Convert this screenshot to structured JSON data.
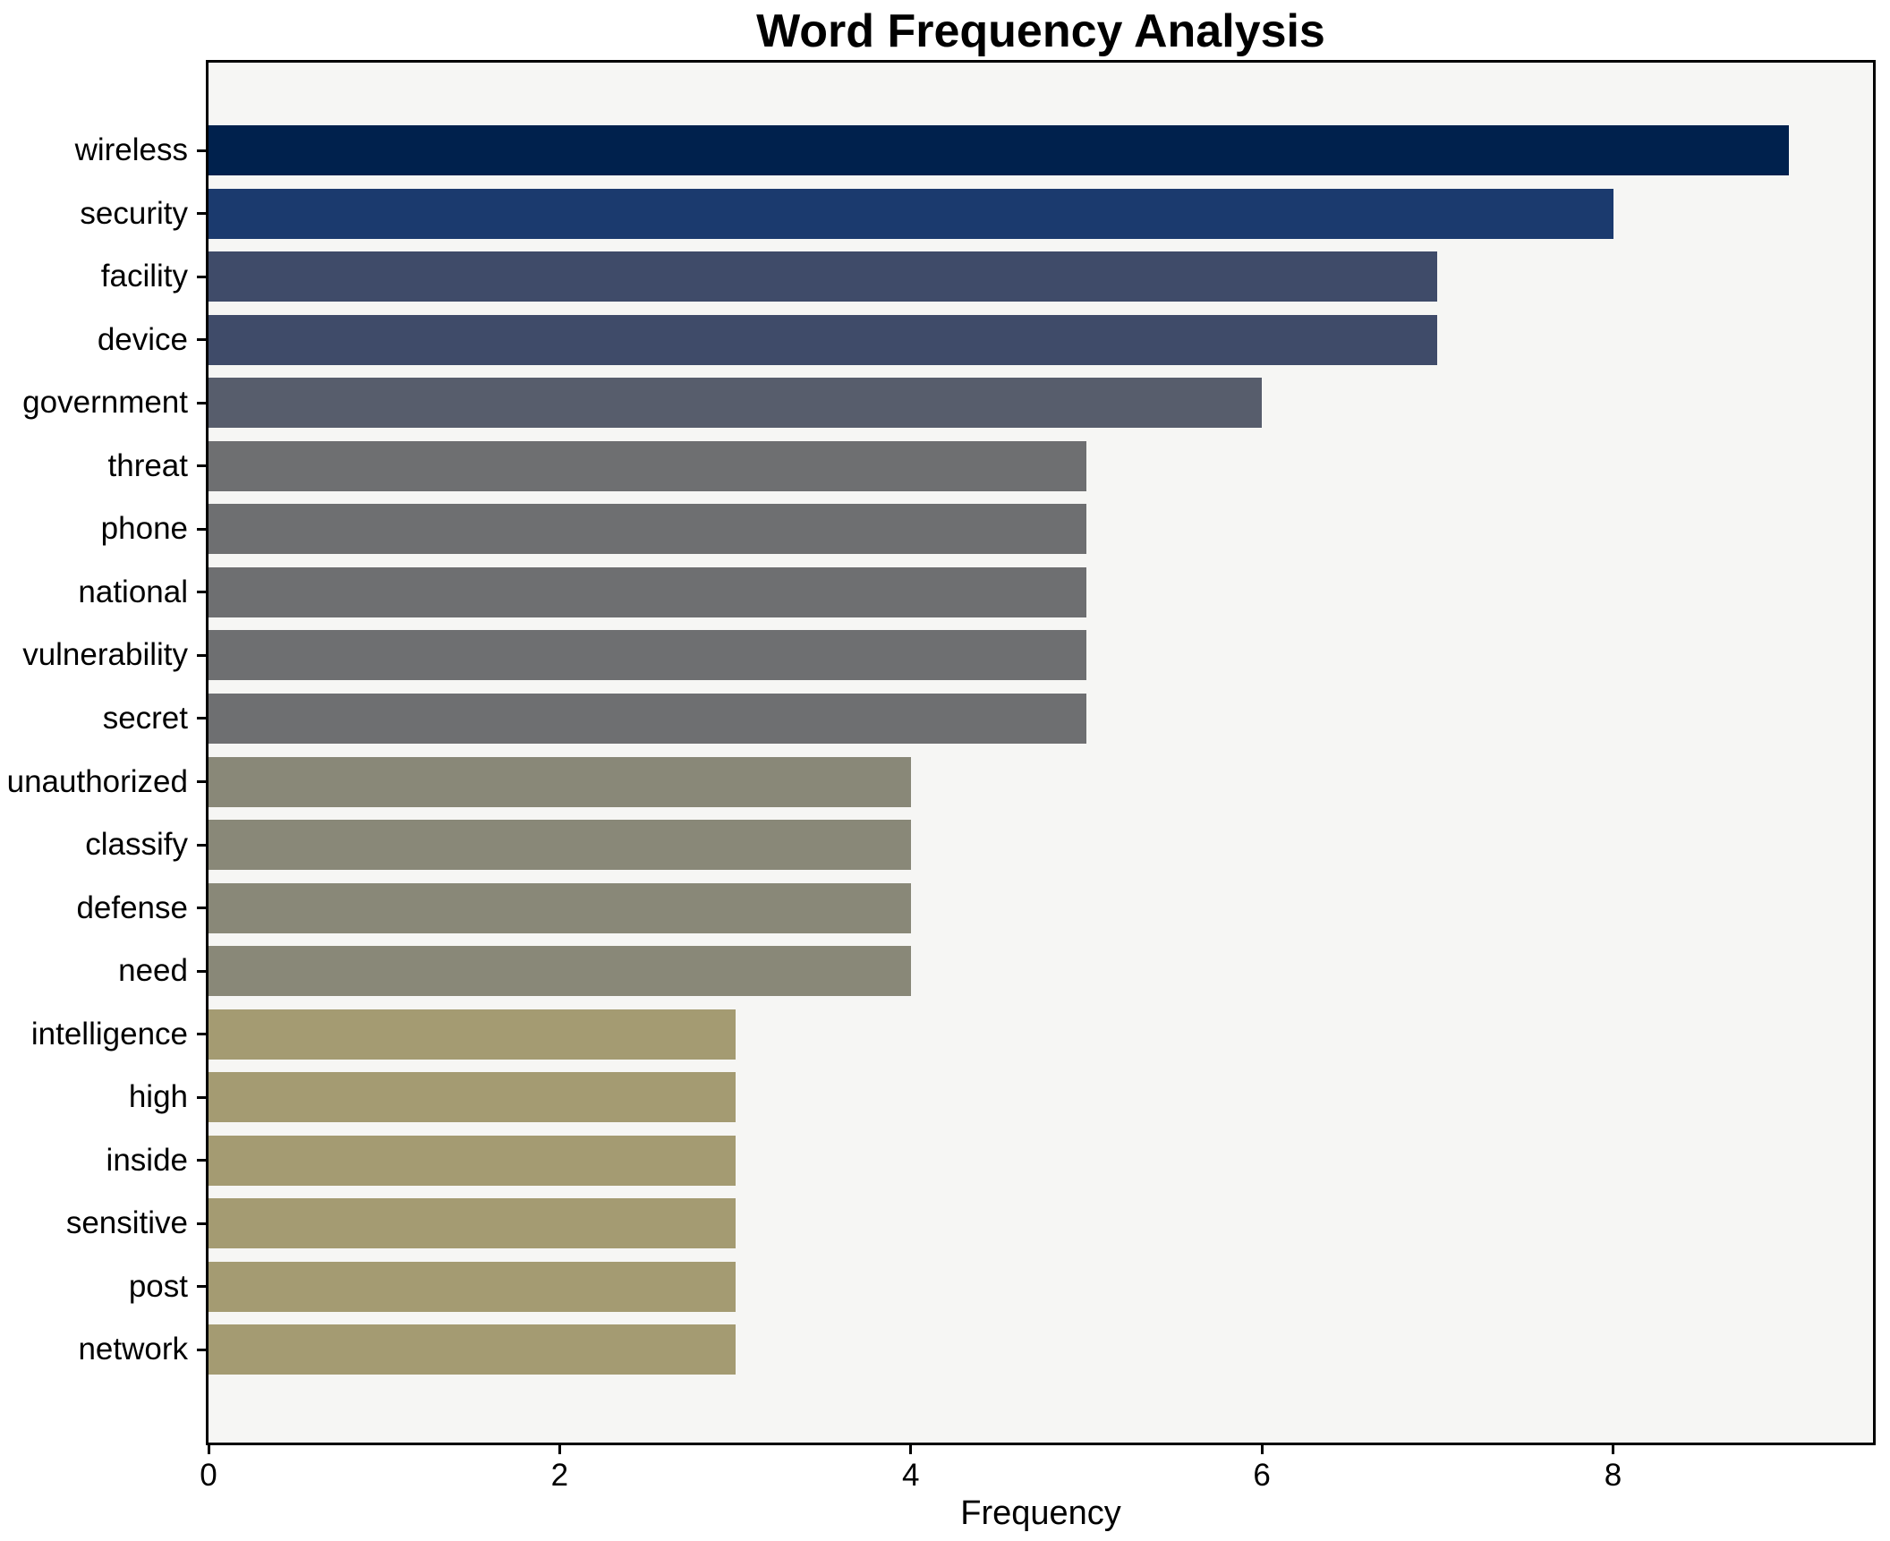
{
  "chart_data": {
    "type": "bar",
    "orientation": "horizontal",
    "title": "Word Frequency Analysis",
    "xlabel": "Frequency",
    "ylabel": "",
    "xlim": [
      0,
      9.45
    ],
    "xticks": [
      0,
      2,
      4,
      6,
      8
    ],
    "grid": false,
    "legend": null,
    "categories": [
      "wireless",
      "security",
      "facility",
      "device",
      "government",
      "threat",
      "phone",
      "national",
      "vulnerability",
      "secret",
      "unauthorized",
      "classify",
      "defense",
      "need",
      "intelligence",
      "high",
      "inside",
      "sensitive",
      "post",
      "network"
    ],
    "values": [
      9,
      8,
      7,
      7,
      6,
      5,
      5,
      5,
      5,
      5,
      4,
      4,
      4,
      4,
      3,
      3,
      3,
      3,
      3,
      3
    ],
    "bar_colors": [
      "#00214d",
      "#1b3a6e",
      "#3f4b69",
      "#3f4b69",
      "#575d6c",
      "#6e6f71",
      "#6e6f71",
      "#6e6f71",
      "#6e6f71",
      "#6e6f71",
      "#898878",
      "#898878",
      "#898878",
      "#898878",
      "#a49b72",
      "#a49b72",
      "#a49b72",
      "#a49b72",
      "#a49b72",
      "#a49b72"
    ],
    "value_color_map": {
      "9": "#00214d",
      "8": "#1b3a6e",
      "7": "#3f4b69",
      "6": "#575d6c",
      "5": "#6e6f71",
      "4": "#898878",
      "3": "#a49b72"
    },
    "plot_background": "#f6f6f4",
    "figure_background": "#ffffff",
    "axis_color": "#000000"
  }
}
